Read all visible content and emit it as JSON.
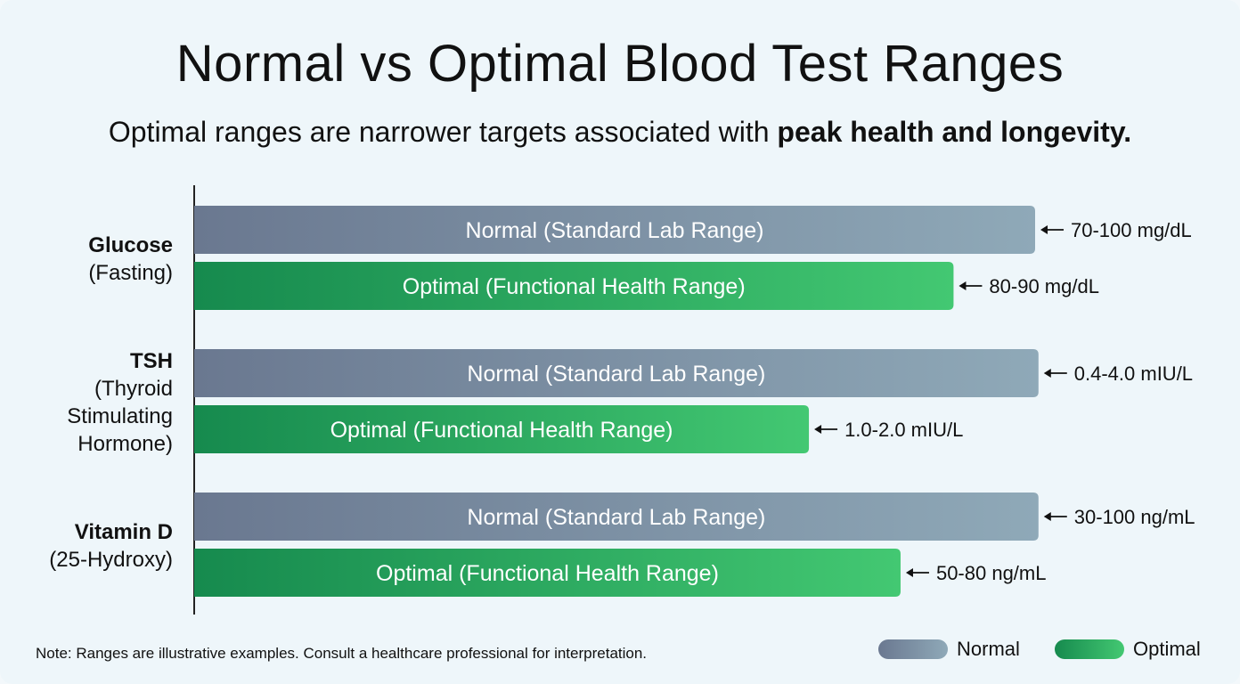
{
  "title": "Normal vs Optimal Blood Test Ranges",
  "subtitle_prefix": "Optimal ranges are narrower targets associated with ",
  "subtitle_bold": "peak health and longevity.",
  "note": "Note: Ranges are illustrative examples. Consult a healthcare professional for interpretation.",
  "colors": {
    "normal_start": "#6a7890",
    "normal_end": "#8fa9b8",
    "optimal_start": "#168a4e",
    "optimal_end": "#43c872"
  },
  "chart_data": {
    "type": "bar",
    "orientation": "horizontal",
    "categories": [
      {
        "name": "Glucose",
        "detail": [
          "(Fasting)"
        ]
      },
      {
        "name": "TSH",
        "detail": [
          "(Thyroid",
          "Stimulating",
          "Hormone)"
        ]
      },
      {
        "name": "Vitamin D",
        "detail": [
          "(25-Hydroxy)"
        ]
      }
    ],
    "series": [
      {
        "name": "Normal",
        "bar_text": "Normal (Standard Lab Range)",
        "length": [
          1.0,
          1.004,
          1.004
        ],
        "value_labels": [
          "70-100 mg/dL",
          "0.4-4.0 mIU/L",
          "30-100 ng/mL"
        ]
      },
      {
        "name": "Optimal",
        "bar_text": "Optimal (Functional Health Range)",
        "length": [
          0.903,
          0.731,
          0.84
        ],
        "value_labels": [
          "80-90 mg/dL",
          "1.0-2.0 mIU/L",
          "50-80 ng/mL"
        ]
      }
    ],
    "legend": [
      "Normal",
      "Optimal"
    ],
    "legend_position": "bottom-right",
    "grid": false
  }
}
